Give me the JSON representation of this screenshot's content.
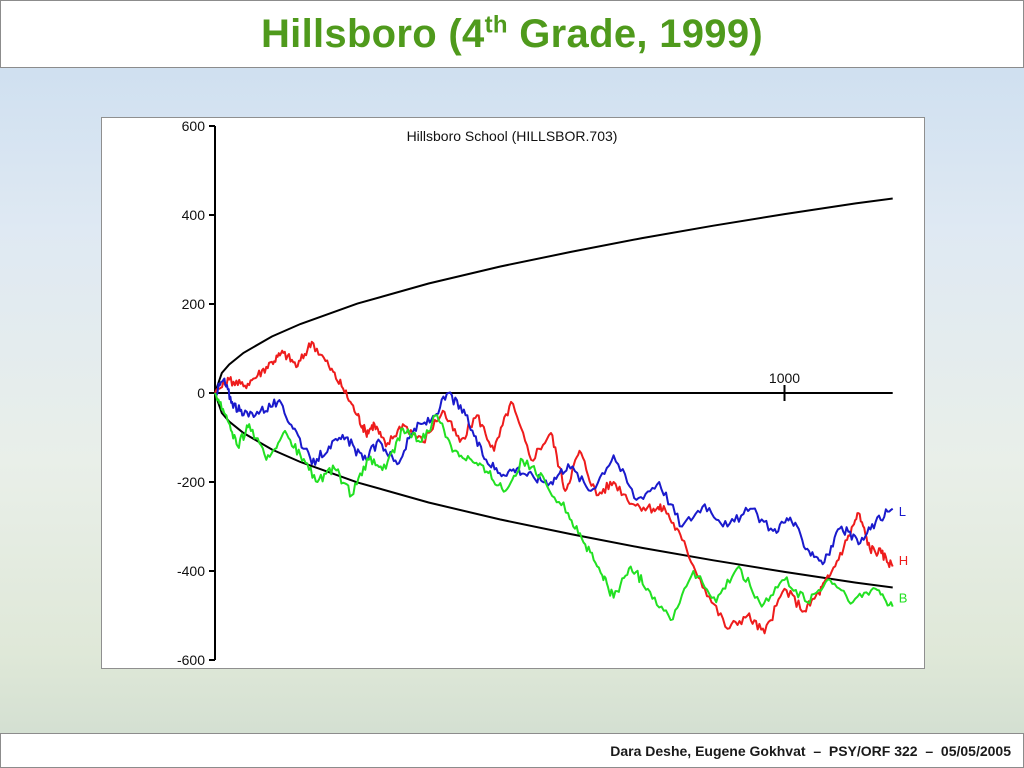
{
  "slide": {
    "title_main": "Hillsboro (4",
    "title_sup": "th",
    "title_end": " Grade, 1999)",
    "footer": "Dara Deshe, Eugene Gokhvat  –  PSY/ORF 322  –  05/05/2005"
  },
  "chart_data": {
    "type": "line",
    "title": "Hillsboro School (HILLSBOR.703)",
    "xlabel": "",
    "ylabel": "",
    "ylim": [
      -600,
      600
    ],
    "xlim": [
      0,
      1500
    ],
    "y_ticks": [
      600,
      400,
      200,
      0,
      -200,
      -400,
      -600
    ],
    "x_tick_labels": [
      {
        "x": 1000,
        "label": "1000"
      }
    ],
    "grid": false,
    "bounds": {
      "name": "",
      "color": "#000000",
      "upper_y": [
        0,
        45,
        64,
        90,
        127,
        155,
        201,
        246,
        284,
        317,
        348,
        376,
        402,
        426,
        437
      ],
      "lower_y": [
        0,
        -45,
        -64,
        -90,
        -127,
        -155,
        -201,
        -246,
        -284,
        -317,
        -348,
        -376,
        -402,
        -426,
        -437
      ],
      "x": [
        0,
        12,
        25,
        50,
        100,
        150,
        250,
        375,
        500,
        625,
        750,
        875,
        1000,
        1125,
        1190
      ]
    },
    "series": [
      {
        "name": "H",
        "color": "#ee1c1c",
        "x": [
          0,
          25,
          50,
          75,
          100,
          120,
          145,
          170,
          200,
          225,
          250,
          265,
          280,
          300,
          330,
          365,
          400,
          430,
          460,
          490,
          520,
          555,
          590,
          615,
          640,
          670,
          700,
          735,
          770,
          790,
          820,
          860,
          900,
          935,
          965,
          1000,
          1035,
          1060,
          1080,
          1110,
          1130,
          1150,
          1170,
          1190
        ],
        "values": [
          0,
          30,
          15,
          40,
          70,
          90,
          60,
          115,
          60,
          10,
          -50,
          -90,
          -70,
          -120,
          -70,
          -110,
          -40,
          -110,
          -50,
          -130,
          -20,
          -150,
          -90,
          -220,
          -130,
          -230,
          -200,
          -250,
          -260,
          -260,
          -330,
          -440,
          -530,
          -500,
          -540,
          -440,
          -490,
          -450,
          -410,
          -330,
          -270,
          -350,
          -360,
          -390
        ]
      },
      {
        "name": "L",
        "color": "#1a1acc",
        "x": [
          0,
          15,
          30,
          50,
          80,
          110,
          140,
          170,
          200,
          230,
          260,
          290,
          320,
          350,
          380,
          410,
          440,
          470,
          500,
          530,
          560,
          590,
          620,
          660,
          700,
          740,
          780,
          820,
          860,
          900,
          940,
          980,
          1010,
          1040,
          1070,
          1100,
          1130,
          1160,
          1190
        ],
        "values": [
          0,
          30,
          -20,
          -50,
          -40,
          -20,
          -80,
          -160,
          -120,
          -100,
          -150,
          -110,
          -160,
          -80,
          -60,
          0,
          -50,
          -140,
          -180,
          -170,
          -190,
          -200,
          -160,
          -220,
          -140,
          -240,
          -200,
          -300,
          -250,
          -300,
          -260,
          -310,
          -280,
          -350,
          -380,
          -300,
          -340,
          -290,
          -260
        ]
      },
      {
        "name": "B",
        "color": "#22e022",
        "x": [
          0,
          20,
          40,
          60,
          90,
          120,
          150,
          180,
          210,
          240,
          270,
          300,
          330,
          360,
          390,
          420,
          450,
          480,
          510,
          540,
          580,
          620,
          650,
          680,
          700,
          730,
          760,
          800,
          840,
          880,
          920,
          960,
          1000,
          1040,
          1080,
          1120,
          1160,
          1190
        ],
        "values": [
          0,
          -50,
          -120,
          -70,
          -150,
          -90,
          -140,
          -200,
          -170,
          -230,
          -150,
          -170,
          -80,
          -110,
          -50,
          -130,
          -150,
          -180,
          -220,
          -150,
          -200,
          -270,
          -340,
          -410,
          -460,
          -390,
          -440,
          -510,
          -400,
          -470,
          -390,
          -480,
          -420,
          -470,
          -420,
          -470,
          -440,
          -480
        ]
      }
    ]
  }
}
